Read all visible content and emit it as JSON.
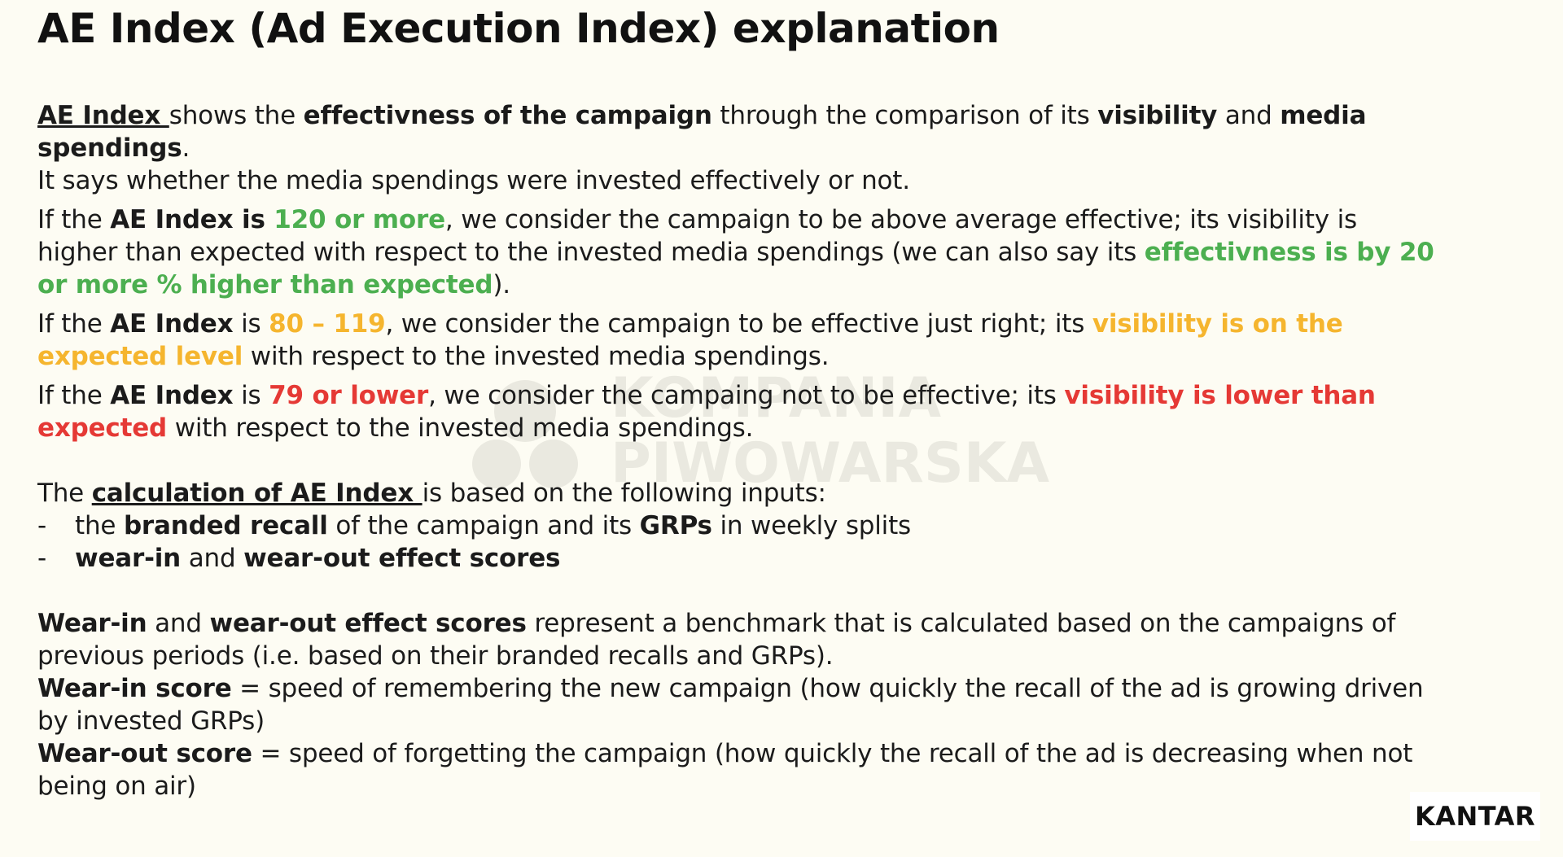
{
  "title": "AE Index (Ad Execution Index) explanation",
  "intro": {
    "term": "AE Index ",
    "t1": "shows the ",
    "b1": "effectivness of the campaign",
    "t2": " through the comparison of its ",
    "b2": "visibility",
    "t3": " and ",
    "b3": "media spendings",
    "t4": ".",
    "line2": "It says whether the media spendings were invested effectively or not."
  },
  "level_high": {
    "t1": "If the ",
    "b1": "AE Index is ",
    "value": "120 or more",
    "t2": ", we consider the campaign to be above average effective; its visibility is higher than expected with respect to the invested media spendings (we can also say its ",
    "highlight": "effectivness is by 20 or more % higher than expected",
    "t3": ")."
  },
  "level_mid": {
    "t1": "If the ",
    "b1": "AE Index",
    "t2": " is ",
    "value": "80 – 119",
    "t3": ", we consider the campaign to be effective just right; its ",
    "highlight": "visibility is on the expected level",
    "t4": " with respect to the invested media spendings."
  },
  "level_low": {
    "t1": "If the ",
    "b1": "AE Index",
    "t2": " is ",
    "value": "79 or lower",
    "t3": ", we consider the campaing not to be effective; its ",
    "highlight": "visibility is lower than expected",
    "t4": " with respect to the invested media spendings."
  },
  "calculation": {
    "t1": "The ",
    "term": "calculation of AE Index ",
    "t2": "is based on the following inputs:",
    "items": [
      {
        "dash": "-",
        "t1": "the ",
        "b1": "branded recall",
        "t2": " of the campaign and its ",
        "b2": "GRPs",
        "t3": " in weekly splits"
      },
      {
        "dash": "-",
        "b1": "wear-in",
        "t1": " and ",
        "b2": "wear-out effect scores"
      }
    ]
  },
  "scores": {
    "b1": "Wear-in",
    "t1": " and ",
    "b2": "wear-out effect scores",
    "t2": " represent a benchmark that is calculated based on the campaigns of previous periods (i.e. based on their branded recalls and GRPs).",
    "wearin_label": "Wear-in score",
    "wearin_text": " = speed of remembering the new campaign (how quickly the recall of the ad is growing driven by invested GRPs)",
    "wearout_label": "Wear-out score",
    "wearout_text": " = speed of forgetting the campaign (how quickly the recall of the ad is decreasing when not being on air)"
  },
  "watermark": {
    "line1": "KOMPANIA",
    "line2": "PIWOWARSKA",
    "icon": "kompania-piwowarska-logo-icon"
  },
  "logo": {
    "text": "KANTAR"
  },
  "colors": {
    "background": "#fdfcf3",
    "green": "#4caf50",
    "yellow": "#f5b52e",
    "red": "#e53935"
  }
}
